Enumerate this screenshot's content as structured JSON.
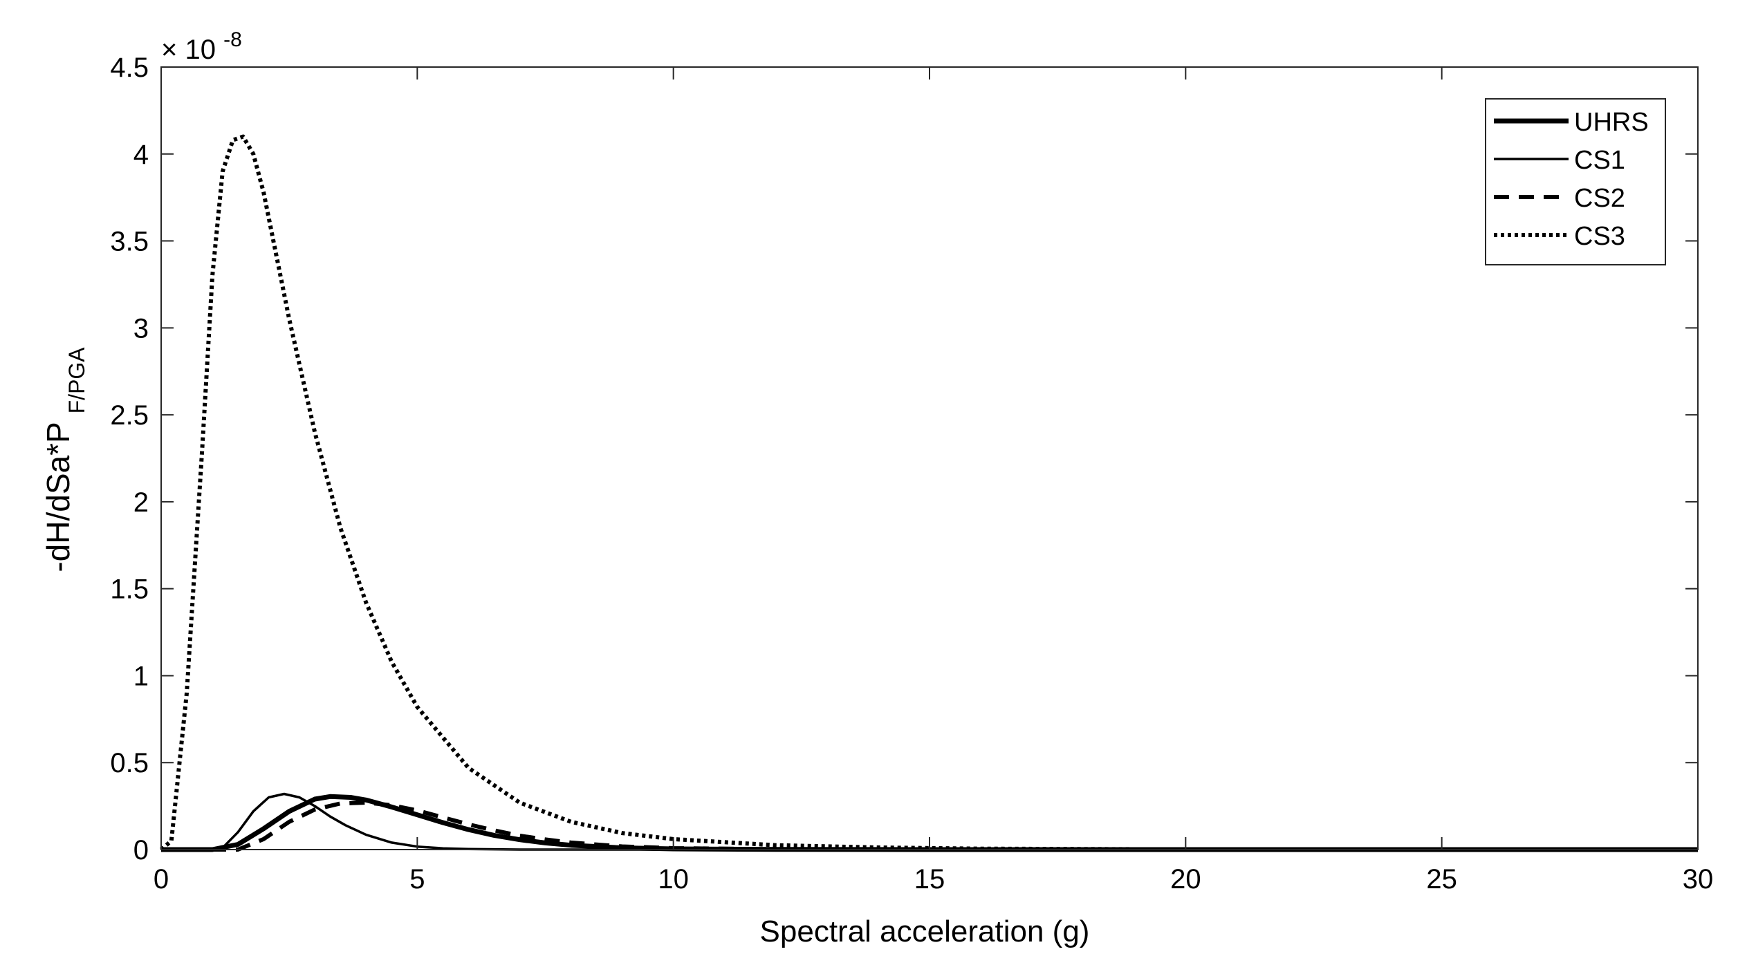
{
  "chart_data": {
    "type": "line",
    "title": "",
    "xlabel": "Spectral acceleration (g)",
    "ylabel": {
      "main": "-dH/dSa*P",
      "subscript": "F/PGA"
    },
    "exponent_label": {
      "base": "× 10",
      "exponent": "-8"
    },
    "xlim": [
      0,
      30
    ],
    "ylim": [
      0,
      4.5
    ],
    "y_scale_factor": 1e-08,
    "xticks": [
      0,
      5,
      10,
      15,
      20,
      25,
      30
    ],
    "xtick_labels": [
      "0",
      "5",
      "10",
      "15",
      "20",
      "25",
      "30"
    ],
    "yticks": [
      0,
      0.5,
      1,
      1.5,
      2,
      2.5,
      3,
      3.5,
      4,
      4.5
    ],
    "ytick_labels": [
      "0",
      "0.5",
      "1",
      "1.5",
      "2",
      "2.5",
      "3",
      "3.5",
      "4",
      "4.5"
    ],
    "grid": false,
    "legend_position": "top-right",
    "series": [
      {
        "name": "UHRS",
        "style": "solid-thick",
        "x": [
          0,
          1,
          1.5,
          2,
          2.5,
          3,
          3.3,
          3.7,
          4,
          4.5,
          5,
          5.5,
          6,
          6.5,
          7,
          7.5,
          8,
          9,
          10,
          12,
          15,
          20,
          30
        ],
        "y": [
          0,
          0,
          0.03,
          0.12,
          0.22,
          0.29,
          0.305,
          0.3,
          0.285,
          0.245,
          0.2,
          0.155,
          0.115,
          0.082,
          0.057,
          0.038,
          0.025,
          0.01,
          0.004,
          0.001,
          0,
          0,
          0
        ]
      },
      {
        "name": "CS1",
        "style": "solid-thin",
        "x": [
          0,
          1,
          1.2,
          1.5,
          1.8,
          2.1,
          2.4,
          2.7,
          3,
          3.3,
          3.6,
          4,
          4.5,
          5,
          5.5,
          6,
          7,
          8,
          10,
          15,
          30
        ],
        "y": [
          0,
          0,
          0.01,
          0.1,
          0.22,
          0.3,
          0.32,
          0.3,
          0.25,
          0.19,
          0.14,
          0.085,
          0.04,
          0.017,
          0.007,
          0.003,
          0,
          0,
          0,
          0,
          0
        ]
      },
      {
        "name": "CS2",
        "style": "dashed",
        "x": [
          0,
          1.5,
          2,
          2.5,
          3,
          3.5,
          4,
          4.5,
          5,
          5.5,
          6,
          6.5,
          7,
          7.5,
          8,
          9,
          10,
          12,
          15,
          30
        ],
        "y": [
          0,
          0,
          0.06,
          0.16,
          0.23,
          0.265,
          0.27,
          0.255,
          0.225,
          0.185,
          0.145,
          0.11,
          0.08,
          0.058,
          0.04,
          0.018,
          0.008,
          0.002,
          0,
          0
        ]
      },
      {
        "name": "CS3",
        "style": "dotted",
        "x": [
          0,
          0.2,
          0.5,
          0.8,
          1,
          1.2,
          1.4,
          1.6,
          1.8,
          2,
          2.5,
          3,
          3.5,
          4,
          4.5,
          5,
          6,
          7,
          8,
          9,
          10,
          12,
          14,
          16,
          20,
          30
        ],
        "y": [
          0,
          0.05,
          0.9,
          2.3,
          3.3,
          3.9,
          4.08,
          4.1,
          4.0,
          3.78,
          3.05,
          2.4,
          1.85,
          1.42,
          1.08,
          0.82,
          0.47,
          0.27,
          0.16,
          0.095,
          0.06,
          0.025,
          0.012,
          0.005,
          0.001,
          0
        ]
      }
    ]
  }
}
